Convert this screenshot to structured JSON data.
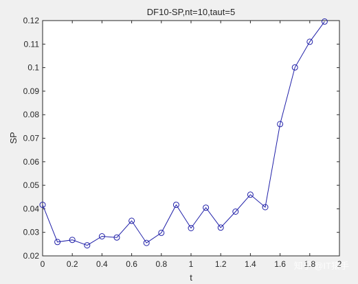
{
  "watermark": "知乎 @IT猿手",
  "chart_data": {
    "type": "line",
    "title": "DF10-SP,nt=10,taut=5",
    "xlabel": "t",
    "ylabel": "SP",
    "xlim": [
      0,
      2
    ],
    "ylim": [
      0.02,
      0.12
    ],
    "x_ticks": [
      0,
      0.2,
      0.4,
      0.6,
      0.8,
      1,
      1.2,
      1.4,
      1.6,
      1.8,
      2
    ],
    "x_tick_labels": [
      "0",
      "0.2",
      "0.4",
      "0.6",
      "0.8",
      "1",
      "1.2",
      "1.4",
      "1.6",
      "1.8",
      "2"
    ],
    "y_ticks": [
      0.02,
      0.03,
      0.04,
      0.05,
      0.06,
      0.07,
      0.08,
      0.09,
      0.1,
      0.11,
      0.12
    ],
    "y_tick_labels": [
      "0.02",
      "0.03",
      "0.04",
      "0.05",
      "0.06",
      "0.07",
      "0.08",
      "0.09",
      "0.1",
      "0.11",
      "0.12"
    ],
    "grid": false,
    "marker": "circle",
    "line_color": "#1f1fa8",
    "series": [
      {
        "x": [
          0,
          0.1,
          0.2,
          0.3,
          0.4,
          0.5,
          0.6,
          0.7,
          0.8,
          0.9,
          1.0,
          1.1,
          1.2,
          1.3,
          1.4,
          1.5,
          1.6,
          1.7,
          1.8,
          1.9
        ],
        "values": [
          0.0417,
          0.0259,
          0.0268,
          0.0245,
          0.0283,
          0.0278,
          0.0349,
          0.0255,
          0.0298,
          0.0417,
          0.0318,
          0.0405,
          0.032,
          0.0388,
          0.046,
          0.0407,
          0.076,
          0.1001,
          0.111,
          0.1196
        ]
      }
    ]
  }
}
